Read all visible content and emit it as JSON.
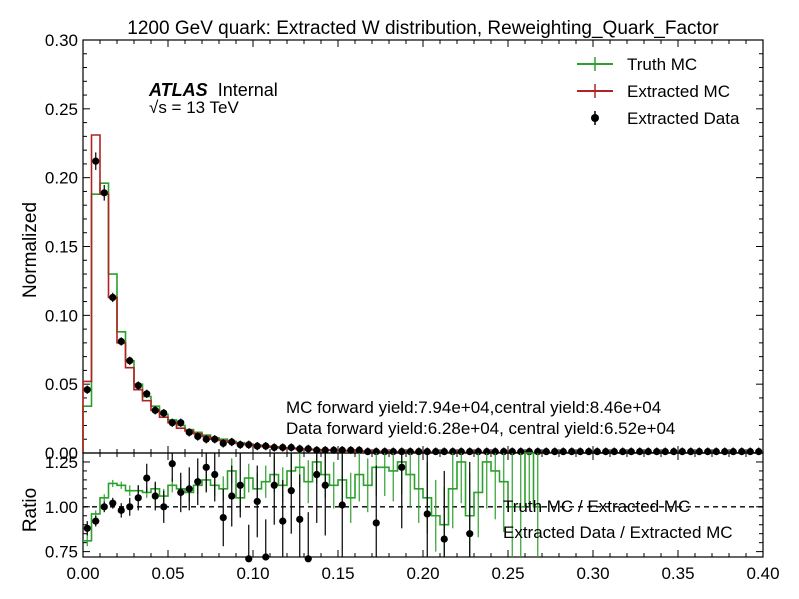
{
  "chart_data": [
    {
      "type": "histogram",
      "title": "1200 GeV quark: Extracted W distribution, Reweighting_Quark_Factor",
      "xlabel": "",
      "ylabel": "Normalized",
      "xlim": [
        0.0,
        0.4
      ],
      "ylim": [
        0.0,
        0.3
      ],
      "y_ticks": [
        "0.00",
        "0.05",
        "0.10",
        "0.15",
        "0.20",
        "0.25",
        "0.30"
      ],
      "legend_position": "top-right",
      "atlas_label": "ATLAS",
      "atlas_sub": "Internal",
      "energy_label": "√s = 13 TeV",
      "annotations": [
        "MC forward yield:7.94e+04,central yield:8.46e+04",
        "Data forward yield:6.28e+04, central yield:6.52e+04"
      ],
      "bin_edges": [
        0.0,
        0.005,
        0.01,
        0.015,
        0.02,
        0.025,
        0.03,
        0.035,
        0.04,
        0.045,
        0.05,
        0.055,
        0.06,
        0.065,
        0.07,
        0.075,
        0.08,
        0.085,
        0.09,
        0.095,
        0.1,
        0.105,
        0.11,
        0.115,
        0.12,
        0.125,
        0.13,
        0.135,
        0.14,
        0.145,
        0.15,
        0.155,
        0.16,
        0.165,
        0.17,
        0.175,
        0.18,
        0.185,
        0.19,
        0.195,
        0.2,
        0.205,
        0.21,
        0.215,
        0.22,
        0.225,
        0.23,
        0.235,
        0.24,
        0.245,
        0.25,
        0.255,
        0.26,
        0.265,
        0.27,
        0.275,
        0.28,
        0.285,
        0.29,
        0.295,
        0.3,
        0.305,
        0.31,
        0.315,
        0.32,
        0.325,
        0.33,
        0.335,
        0.34,
        0.345,
        0.35,
        0.355,
        0.36,
        0.365,
        0.37,
        0.375,
        0.38,
        0.385,
        0.39,
        0.395,
        0.4
      ],
      "series": [
        {
          "name": "Truth MC",
          "style": "step",
          "color": "#2ca02c",
          "values": [
            0.034,
            0.188,
            0.196,
            0.13,
            0.088,
            0.067,
            0.05,
            0.041,
            0.034,
            0.028,
            0.024,
            0.02,
            0.017,
            0.015,
            0.013,
            0.011,
            0.01,
            0.0085,
            0.0075,
            0.0065,
            0.0058,
            0.0051,
            0.0045,
            0.004,
            0.0036,
            0.0032,
            0.0028,
            0.0025,
            0.0022,
            0.002,
            0.0018,
            0.0016,
            0.0014,
            0.0013,
            0.0012,
            0.0011,
            0.001,
            0.0009,
            0.0008,
            0.0007,
            0.0006,
            0.0006,
            0.0005,
            0.0005,
            0.0004,
            0.0004,
            0.0004,
            0.0003,
            0.0003,
            0.0003,
            0.0003,
            0.0002,
            0.0002,
            0.0002,
            0.0002,
            0.0002,
            0.0002,
            0.0002,
            0.0001,
            0.0001,
            0.0001,
            0.0001,
            0.0001,
            0.0001,
            0.0001,
            0.0001,
            0.0001,
            0.0001,
            0.0001,
            0.0001,
            0.0001,
            0.0001,
            0.0001,
            0.0001,
            0.0001,
            0.0001,
            0.0001,
            0.0001,
            0.0001,
            0.0001
          ]
        },
        {
          "name": "Extracted MC",
          "style": "step",
          "color": "#b22222",
          "values": [
            0.052,
            0.231,
            0.188,
            0.113,
            0.08,
            0.062,
            0.046,
            0.038,
            0.031,
            0.026,
            0.022,
            0.018,
            0.016,
            0.014,
            0.012,
            0.01,
            0.009,
            0.0078,
            0.0069,
            0.0061,
            0.0053,
            0.0047,
            0.0042,
            0.0037,
            0.0033,
            0.0029,
            0.0026,
            0.0023,
            0.0021,
            0.0019,
            0.0017,
            0.0015,
            0.0013,
            0.0012,
            0.0011,
            0.001,
            0.0009,
            0.0008,
            0.0007,
            0.0006,
            0.0006,
            0.0005,
            0.0005,
            0.0004,
            0.0004,
            0.0004,
            0.0003,
            0.0003,
            0.0003,
            0.0003,
            0.0002,
            0.0002,
            0.0002,
            0.0002,
            0.0002,
            0.0002,
            0.0002,
            0.0001,
            0.0001,
            0.0001,
            0.0001,
            0.0001,
            0.0001,
            0.0001,
            0.0001,
            0.0001,
            0.0001,
            0.0001,
            0.0001,
            0.0001,
            0.0001,
            0.0001,
            0.0001,
            0.0001,
            0.0001,
            0.0001,
            0.0001,
            0.0001,
            0.0001,
            0.0001
          ]
        },
        {
          "name": "Extracted Data",
          "style": "points",
          "color": "#000000",
          "x": [
            0.0025,
            0.0075,
            0.0125,
            0.0175,
            0.0225,
            0.0275,
            0.0325,
            0.0375,
            0.0425,
            0.0475,
            0.0525,
            0.0575,
            0.0625,
            0.0675,
            0.0725,
            0.0775,
            0.0825,
            0.0875,
            0.0925,
            0.0975,
            0.1025,
            0.1075,
            0.1125,
            0.1175,
            0.1225,
            0.1275,
            0.1325,
            0.1375,
            0.1425,
            0.1475,
            0.1525,
            0.1575,
            0.1625,
            0.1675,
            0.1725,
            0.1775,
            0.1825,
            0.1875,
            0.1925,
            0.1975,
            0.2025,
            0.2075,
            0.2125,
            0.2175,
            0.2225,
            0.2275,
            0.2325,
            0.2375,
            0.2425,
            0.2475,
            0.2525,
            0.2575,
            0.2625,
            0.2675,
            0.2725,
            0.2775,
            0.2825,
            0.2875,
            0.2925,
            0.2975,
            0.3025,
            0.3075,
            0.3125,
            0.3175,
            0.3225,
            0.3275,
            0.3325,
            0.3375,
            0.3425,
            0.3475,
            0.3525,
            0.3575,
            0.3625,
            0.3675,
            0.3725,
            0.3775,
            0.3825,
            0.3875,
            0.3925,
            0.3975
          ],
          "values": [
            0.046,
            0.212,
            0.189,
            0.113,
            0.081,
            0.067,
            0.049,
            0.043,
            0.031,
            0.029,
            0.022,
            0.022,
            0.015,
            0.012,
            0.01,
            0.01,
            0.007,
            0.008,
            0.006,
            0.006,
            0.005,
            0.005,
            0.004,
            0.004,
            0.004,
            0.003,
            0.003,
            0.002,
            0.002,
            0.002,
            0.002,
            0.002,
            0.002,
            0.001,
            0.001,
            0.001,
            0.001,
            0.001,
            0.001,
            0.001,
            0.001,
            0.001,
            0.001,
            0.001,
            0.001,
            0.001,
            0.001,
            0.001,
            0.001,
            0.001,
            0.001,
            0.001,
            0.001,
            0.001,
            0.001,
            0.001,
            0.001,
            0.001,
            0.001,
            0.001,
            0.001,
            0.001,
            0.001,
            0.001,
            0.001,
            0.001,
            0.001,
            0.001,
            0.001,
            0.001,
            0.001,
            0.001,
            0.001,
            0.001,
            0.001,
            0.001,
            0.001,
            0.001,
            0.001,
            0.001
          ]
        }
      ]
    },
    {
      "type": "histogram",
      "title": "",
      "xlabel": "",
      "ylabel": "Ratio",
      "xlim": [
        0.0,
        0.4
      ],
      "ylim": [
        0.72,
        1.3
      ],
      "y_ticks": [
        "0.75",
        "1.00",
        "1.25"
      ],
      "x_ticks": [
        "0.00",
        "0.05",
        "0.10",
        "0.15",
        "0.20",
        "0.25",
        "0.30",
        "0.35",
        "0.40"
      ],
      "reference_line": 1.0,
      "series": [
        {
          "name": "Truth MC / Extracted MC",
          "style": "step",
          "color": "#2ca02c",
          "bin_edges": [
            0.0,
            0.005,
            0.01,
            0.015,
            0.02,
            0.025,
            0.03,
            0.035,
            0.04,
            0.045,
            0.05,
            0.055,
            0.06,
            0.065,
            0.07,
            0.075,
            0.08,
            0.085,
            0.09,
            0.095,
            0.1,
            0.105,
            0.11,
            0.115,
            0.12,
            0.125,
            0.13,
            0.135,
            0.14,
            0.145,
            0.15,
            0.155,
            0.16,
            0.165,
            0.17,
            0.175,
            0.18,
            0.185,
            0.19,
            0.195,
            0.2,
            0.205,
            0.21,
            0.215,
            0.22,
            0.225,
            0.23,
            0.235,
            0.24,
            0.245,
            0.25,
            0.255,
            0.26,
            0.265,
            0.27
          ],
          "values": [
            0.81,
            0.96,
            1.05,
            1.13,
            1.12,
            1.09,
            1.09,
            1.08,
            1.1,
            1.06,
            1.12,
            1.1,
            1.08,
            1.12,
            1.15,
            1.12,
            1.1,
            1.2,
            1.05,
            1.16,
            1.1,
            1.14,
            1.18,
            1.12,
            1.2,
            1.22,
            1.14,
            1.25,
            1.18,
            1.12,
            1.15,
            1.05,
            1.18,
            1.12,
            1.22,
            1.22,
            1.2,
            1.25,
            1.18,
            1.1,
            1.05,
            0.95,
            0.9,
            1.1,
            1.25,
            0.95,
            1.08,
            1.25,
            1.2,
            1.14,
            1.0,
            1.0,
            1.3,
            1.0
          ],
          "errors": [
            0.03,
            0.02,
            0.02,
            0.02,
            0.02,
            0.03,
            0.03,
            0.03,
            0.03,
            0.04,
            0.04,
            0.05,
            0.05,
            0.05,
            0.06,
            0.06,
            0.07,
            0.07,
            0.08,
            0.08,
            0.09,
            0.09,
            0.1,
            0.1,
            0.11,
            0.11,
            0.12,
            0.12,
            0.13,
            0.13,
            0.14,
            0.14,
            0.15,
            0.15,
            0.16,
            0.16,
            0.17,
            0.18,
            0.18,
            0.19,
            0.2,
            0.2,
            0.21,
            0.22,
            0.23,
            0.24,
            0.25,
            0.26,
            0.27,
            0.28,
            0.3,
            0.3,
            0.3,
            0.3
          ]
        },
        {
          "name": "Extracted Data / Extracted MC",
          "style": "points",
          "color": "#000000",
          "x": [
            0.0025,
            0.0075,
            0.0125,
            0.0175,
            0.0225,
            0.0275,
            0.0325,
            0.0375,
            0.0425,
            0.0475,
            0.0525,
            0.0575,
            0.0625,
            0.0675,
            0.0725,
            0.0775,
            0.0825,
            0.0875,
            0.0925,
            0.0975,
            0.1025,
            0.1075,
            0.1125,
            0.1175,
            0.1225,
            0.1275,
            0.1325,
            0.1375,
            0.1425,
            0.1525,
            0.1725,
            0.1875,
            0.2025,
            0.2125,
            0.2275
          ],
          "values": [
            0.88,
            0.92,
            1.0,
            1.02,
            0.98,
            1.0,
            1.05,
            1.16,
            1.06,
            1.0,
            1.24,
            1.08,
            1.1,
            1.14,
            1.22,
            1.18,
            0.94,
            1.06,
            1.12,
            0.71,
            1.03,
            0.72,
            1.12,
            0.92,
            1.09,
            0.93,
            0.71,
            1.18,
            1.12,
            1.01,
            0.91,
            1.22,
            0.96,
            0.82,
            0.85
          ],
          "errors": [
            0.04,
            0.03,
            0.03,
            0.03,
            0.04,
            0.05,
            0.07,
            0.08,
            0.08,
            0.09,
            0.1,
            0.11,
            0.12,
            0.13,
            0.14,
            0.15,
            0.16,
            0.17,
            0.18,
            0.19,
            0.2,
            0.21,
            0.22,
            0.23,
            0.24,
            0.25,
            0.26,
            0.27,
            0.28,
            0.3,
            0.32,
            0.34,
            0.36,
            0.38,
            0.4
          ]
        }
      ]
    }
  ]
}
